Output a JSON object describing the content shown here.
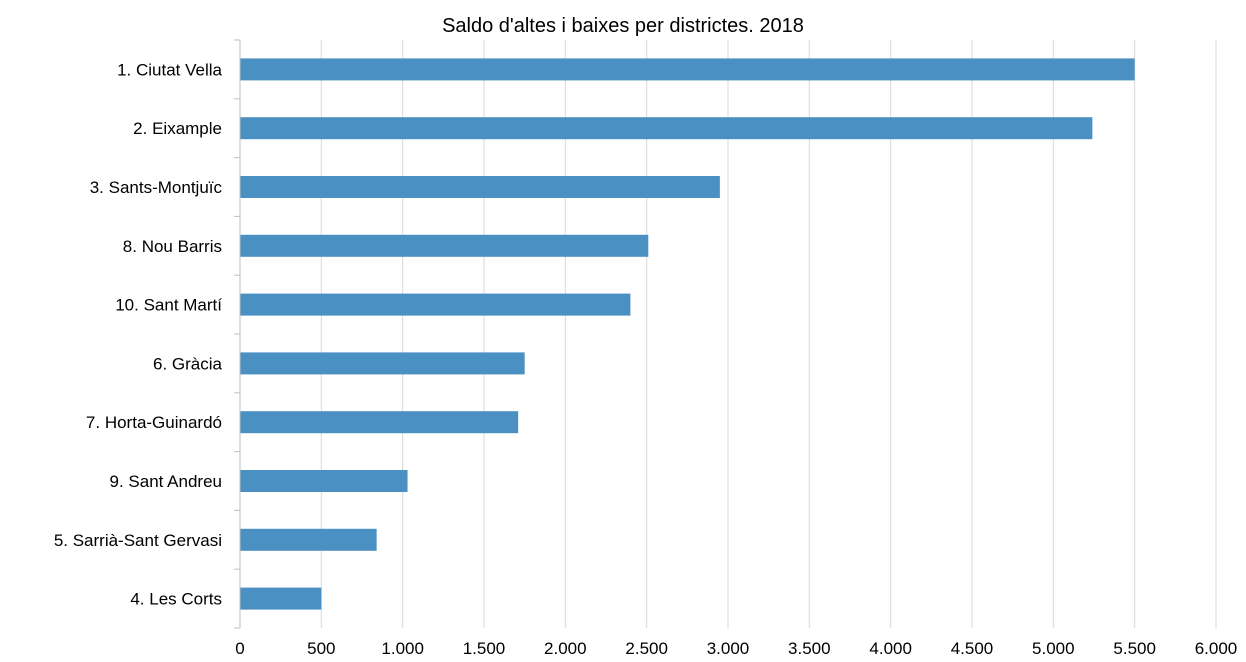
{
  "chart_data": {
    "type": "bar",
    "orientation": "horizontal",
    "title": "Saldo d'altes i baixes per districtes. 2018",
    "categories": [
      "1. Ciutat Vella",
      "2. Eixample",
      "3. Sants-Montjuïc",
      "8. Nou Barris",
      "10. Sant Martí",
      "6. Gràcia",
      "7. Horta-Guinardó",
      "9. Sant Andreu",
      "5. Sarrià-Sant Gervasi",
      "4. Les Corts"
    ],
    "values": [
      5500,
      5240,
      2950,
      2510,
      2400,
      1750,
      1710,
      1030,
      840,
      500
    ],
    "xlim": [
      0,
      6000
    ],
    "x_ticks": [
      0,
      500,
      1000,
      1500,
      2000,
      2500,
      3000,
      3500,
      4000,
      4500,
      5000,
      5500,
      6000
    ],
    "x_tick_labels": [
      "0",
      "500",
      "1.000",
      "1.500",
      "2.000",
      "2.500",
      "3.000",
      "3.500",
      "4.000",
      "4.500",
      "5.000",
      "5.500",
      "6.000"
    ],
    "xlabel": "",
    "ylabel": "",
    "grid": "vertical",
    "legend": "none",
    "colors": {
      "bar": "#4a90c2"
    }
  }
}
